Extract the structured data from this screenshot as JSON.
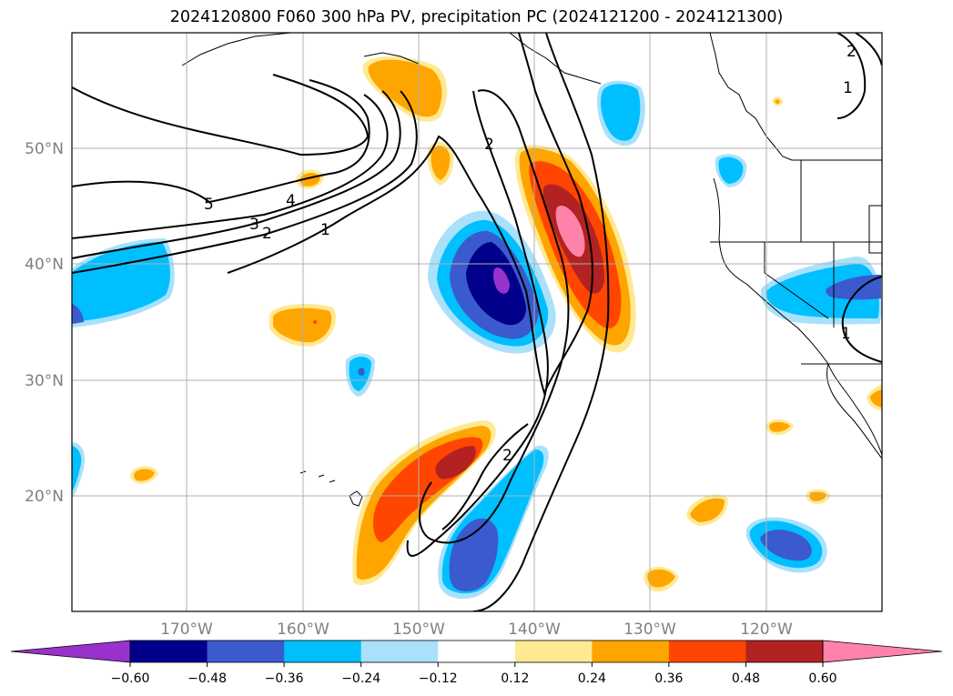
{
  "title": "2024120800 F060 300 hPa PV, precipitation PC (2024121200 - 2024121300)",
  "map": {
    "lon_range": [
      -180,
      -110
    ],
    "lat_range": [
      10,
      60
    ],
    "lat_labels": [
      "20°N",
      "30°N",
      "40°N",
      "50°N"
    ],
    "lon_labels": [
      "170°W",
      "160°W",
      "150°W",
      "140°W",
      "130°W",
      "120°W"
    ],
    "grid": true,
    "projection": "equirectangular",
    "pv_contour_labels": [
      "5",
      "4",
      "3",
      "2",
      "1",
      "2",
      "2",
      "1",
      "1",
      "2"
    ]
  },
  "colorbar": {
    "ticks": [
      "−0.60",
      "−0.48",
      "−0.36",
      "−0.24",
      "−0.12",
      "0.12",
      "0.24",
      "0.36",
      "0.48",
      "0.60"
    ],
    "colors": [
      "#9932cc",
      "#00008b",
      "#3a5acd",
      "#00bfff",
      "#a9e1fb",
      "#ffffff",
      "#ffe993",
      "#ffa500",
      "#ff4500",
      "#b22222",
      "#ff82ab"
    ],
    "extend": "both"
  },
  "chart_data": {
    "type": "heatmap",
    "variable": "precipitation PC",
    "overlay": "300 hPa PV",
    "levels": [
      -0.6,
      -0.48,
      -0.36,
      -0.24,
      -0.12,
      0.12,
      0.24,
      0.36,
      0.48,
      0.6
    ],
    "features": [
      {
        "sign": "negative",
        "peak": -0.6,
        "center_lon": -143,
        "center_lat": 39
      },
      {
        "sign": "positive",
        "peak": 0.6,
        "center_lon": -137.5,
        "center_lat": 43
      },
      {
        "sign": "positive",
        "peak": 0.48,
        "center_lon": -146,
        "center_lat": 23
      },
      {
        "sign": "negative",
        "peak": -0.36,
        "center_lon": -144.5,
        "center_lat": 16
      },
      {
        "sign": "positive",
        "peak": 0.24,
        "center_lon": -150.5,
        "center_lat": 54
      },
      {
        "sign": "negative",
        "peak": -0.24,
        "center_lon": -132.5,
        "center_lat": 53
      },
      {
        "sign": "negative",
        "peak": -0.36,
        "center_lon": -113,
        "center_lat": 38
      },
      {
        "sign": "negative",
        "peak": -0.36,
        "center_lon": -177,
        "center_lat": 38
      },
      {
        "sign": "positive",
        "peak": 0.36,
        "center_lon": -157,
        "center_lat": 35.5
      },
      {
        "sign": "negative",
        "peak": -0.36,
        "center_lon": -118,
        "center_lat": 16
      },
      {
        "sign": "negative",
        "peak": -0.24,
        "center_lon": -155,
        "center_lat": 30.5
      }
    ]
  }
}
